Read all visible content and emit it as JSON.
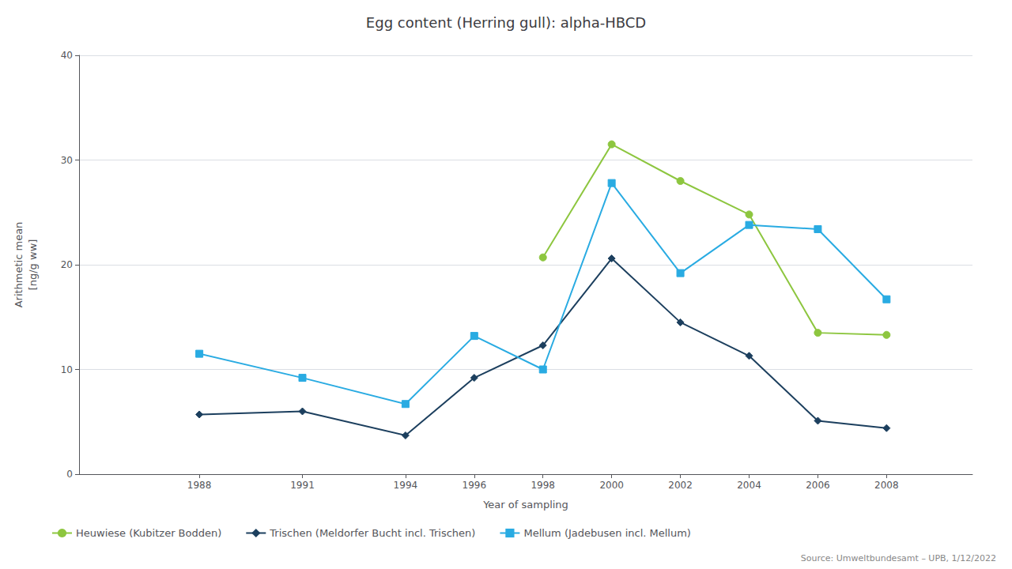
{
  "chart_data": {
    "type": "line",
    "title": "Egg content (Herring gull): alpha-HBCD",
    "xlabel": "Year of sampling",
    "ylabel": "Arithmetic mean\n[ng/g ww]",
    "xlim": [
      1984.5,
      2010.5
    ],
    "xticks": [
      1988,
      1991,
      1994,
      1996,
      1998,
      2000,
      2002,
      2004,
      2006,
      2008
    ],
    "ylim": [
      0,
      40
    ],
    "yticks": [
      0,
      10,
      20,
      30,
      40
    ],
    "grid": true,
    "legend": "bottom",
    "annotations": [
      "Source: Umweltbundesamt – UPB, 1/12/2022"
    ],
    "series": [
      {
        "name": "Heuwiese (Kubitzer Bodden)",
        "color": "#8dc63f",
        "marker": "circle",
        "x": [
          1998,
          2000,
          2002,
          2004,
          2006,
          2008
        ],
        "values": [
          20.7,
          31.5,
          28.0,
          24.8,
          13.5,
          13.3
        ]
      },
      {
        "name": "Trischen (Meldorfer Bucht incl. Trischen)",
        "color": "#1c3f5e",
        "marker": "diamond",
        "x": [
          1988,
          1991,
          1994,
          1996,
          1998,
          2000,
          2002,
          2004,
          2006,
          2008
        ],
        "values": [
          5.7,
          6.0,
          3.7,
          9.2,
          12.3,
          20.6,
          14.5,
          11.3,
          5.1,
          4.4
        ]
      },
      {
        "name": "Mellum (Jadebusen incl. Mellum)",
        "color": "#29abe2",
        "marker": "square",
        "x": [
          1988,
          1991,
          1994,
          1996,
          1998,
          2000,
          2002,
          2004,
          2006,
          2008
        ],
        "values": [
          11.5,
          9.2,
          6.7,
          13.2,
          10.0,
          27.8,
          19.2,
          23.8,
          23.4,
          16.7
        ]
      }
    ]
  }
}
